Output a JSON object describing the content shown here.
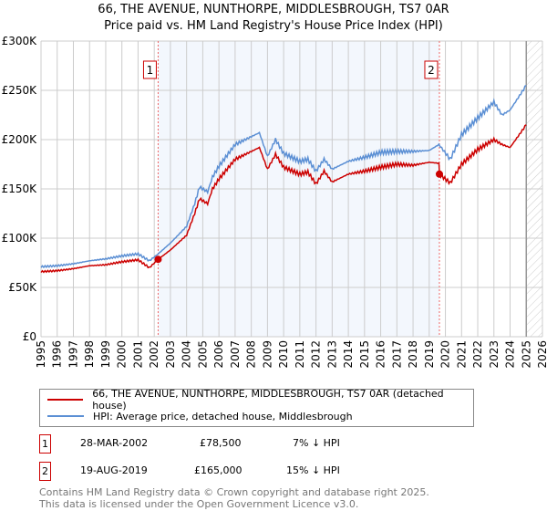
{
  "title": "66, THE AVENUE, NUNTHORPE, MIDDLESBROUGH, TS7 0AR",
  "subtitle": "Price paid vs. HM Land Registry's House Price Index (HPI)",
  "chart_data": {
    "type": "line",
    "xlim": [
      1995,
      2026
    ],
    "ylim": [
      0,
      300000
    ],
    "yticks": [
      {
        "v": 0,
        "label": "£0"
      },
      {
        "v": 50000,
        "label": "£50K"
      },
      {
        "v": 100000,
        "label": "£100K"
      },
      {
        "v": 150000,
        "label": "£150K"
      },
      {
        "v": 200000,
        "label": "£200K"
      },
      {
        "v": 250000,
        "label": "£250K"
      },
      {
        "v": 300000,
        "label": "£300K"
      }
    ],
    "xticks": [
      "1995",
      "1996",
      "1997",
      "1998",
      "1999",
      "2000",
      "2001",
      "2002",
      "2003",
      "2004",
      "2005",
      "2006",
      "2007",
      "2008",
      "2009",
      "2010",
      "2011",
      "2012",
      "2013",
      "2014",
      "2015",
      "2016",
      "2017",
      "2018",
      "2019",
      "2020",
      "2021",
      "2022",
      "2023",
      "2024",
      "2025",
      "2026"
    ],
    "series": [
      {
        "name": "66, THE AVENUE, NUNTHORPE, MIDDLESBROUGH, TS7 0AR (detached house)",
        "color": "#cc0000",
        "x": [
          1995,
          1996,
          1997,
          1998,
          1999,
          2000,
          2001,
          2001.7,
          2002.24,
          2003,
          2004,
          2004.5,
          2004.8,
          2005.3,
          2005.6,
          2006,
          2007,
          2008,
          2008.5,
          2009,
          2009.5,
          2010,
          2011,
          2011.5,
          2012,
          2012.5,
          2013,
          2014,
          2015,
          2016,
          2017,
          2018,
          2019,
          2019.6,
          2019.63,
          2020.3,
          2021,
          2022,
          2023,
          2023.5,
          2024,
          2025
        ],
        "y": [
          66000,
          67000,
          69000,
          72000,
          73000,
          76000,
          78000,
          70000,
          78500,
          88000,
          103000,
          125000,
          140000,
          135000,
          150000,
          160000,
          180000,
          188000,
          192000,
          170000,
          185000,
          172000,
          165000,
          167000,
          155000,
          168000,
          157000,
          165000,
          168000,
          172000,
          175000,
          174000,
          177000,
          176000,
          165000,
          156000,
          175000,
          190000,
          200000,
          195000,
          192000,
          215000
        ]
      },
      {
        "name": "HPI: Average price, detached house, Middlesbrough",
        "color": "#5b8fd4",
        "x": [
          1995,
          1996,
          1997,
          1998,
          1999,
          2000,
          2001,
          2001.7,
          2002.24,
          2003,
          2004,
          2004.5,
          2004.8,
          2005.3,
          2005.6,
          2006,
          2007,
          2008,
          2008.5,
          2009,
          2009.5,
          2010,
          2011,
          2011.5,
          2012,
          2012.5,
          2013,
          2014,
          2015,
          2016,
          2017,
          2018,
          2019,
          2019.6,
          2020.3,
          2021,
          2022,
          2023,
          2023.5,
          2024,
          2025
        ],
        "y": [
          71000,
          72000,
          74000,
          77000,
          79000,
          82000,
          84000,
          77000,
          84000,
          95000,
          112000,
          135000,
          152000,
          147000,
          162000,
          173000,
          195000,
          203000,
          207000,
          183000,
          200000,
          186000,
          178000,
          180000,
          168000,
          180000,
          170000,
          178000,
          182000,
          187000,
          188000,
          188000,
          189000,
          195000,
          180000,
          205000,
          222000,
          238000,
          225000,
          230000,
          255000
        ]
      }
    ],
    "sales": [
      {
        "n": "1",
        "x": 2002.24,
        "y": 78500
      },
      {
        "n": "2",
        "x": 2019.63,
        "y": 165000
      }
    ],
    "shaded_range": [
      2002.24,
      2019.63
    ],
    "forecast_from": 2025.0
  },
  "legend": {
    "red": "66, THE AVENUE, NUNTHORPE, MIDDLESBROUGH, TS7 0AR (detached house)",
    "blue": "HPI: Average price, detached house, Middlesbrough"
  },
  "transactions": [
    {
      "n": "1",
      "date": "28-MAR-2002",
      "price": "£78,500",
      "hpi": "7% ↓ HPI"
    },
    {
      "n": "2",
      "date": "19-AUG-2019",
      "price": "£165,000",
      "hpi": "15% ↓ HPI"
    }
  ],
  "footer": [
    "Contains HM Land Registry data © Crown copyright and database right 2025.",
    "This data is licensed under the Open Government Licence v3.0."
  ]
}
